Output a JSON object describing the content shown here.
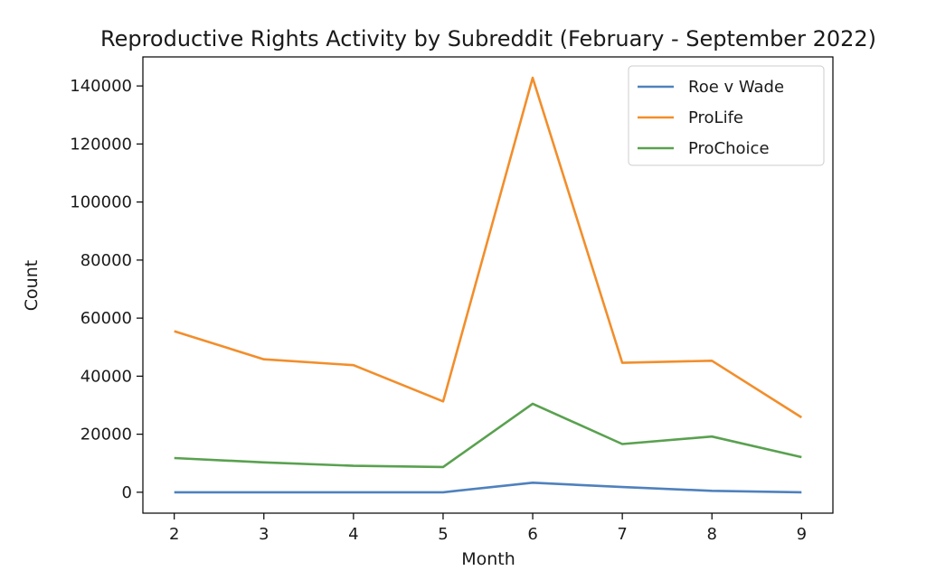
{
  "chart_data": {
    "type": "line",
    "title": "Reproductive Rights Activity by Subreddit (February - September 2022)",
    "xlabel": "Month",
    "ylabel": "Count",
    "x": [
      2,
      3,
      4,
      5,
      6,
      7,
      8,
      9
    ],
    "xticks": [
      "2",
      "3",
      "4",
      "5",
      "6",
      "7",
      "8",
      "9"
    ],
    "yticks": [
      0,
      20000,
      40000,
      60000,
      80000,
      100000,
      120000,
      140000
    ],
    "ytick_labels": [
      "0",
      "20000",
      "40000",
      "60000",
      "80000",
      "100000",
      "120000",
      "140000"
    ],
    "xlim": [
      1.65,
      9.35
    ],
    "ylim": [
      -7200,
      150000
    ],
    "grid": false,
    "legend_position": "top-right",
    "series": [
      {
        "name": "Roe v Wade",
        "color": "#4f81bd",
        "values": [
          0,
          0,
          0,
          0,
          3300,
          1800,
          500,
          0
        ]
      },
      {
        "name": "ProLife",
        "color": "#f28e2b",
        "values": [
          55500,
          45800,
          43800,
          31300,
          142800,
          44600,
          45300,
          25800
        ]
      },
      {
        "name": "ProChoice",
        "color": "#59a14f",
        "values": [
          11800,
          10300,
          9100,
          8700,
          30500,
          16600,
          19200,
          12100
        ]
      }
    ]
  }
}
